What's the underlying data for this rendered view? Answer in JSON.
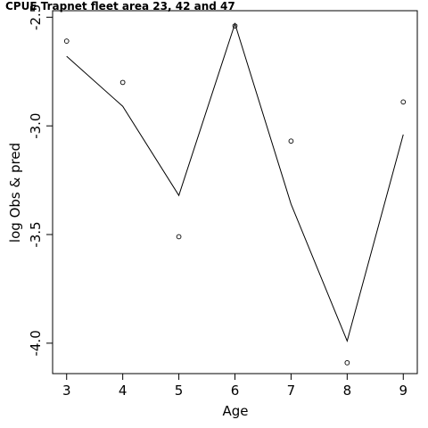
{
  "chart_data": {
    "type": "scatter",
    "title": "CPUE Trapnet fleet area 23, 42 and 47",
    "xlabel": "Age",
    "ylabel": "log Obs & pred",
    "xlim": [
      2.75,
      9.25
    ],
    "ylim": [
      -4.14,
      -2.47
    ],
    "x_ticks": [
      3,
      4,
      5,
      6,
      7,
      8,
      9
    ],
    "y_ticks": [
      -4.0,
      -3.5,
      -3.0,
      -2.5
    ],
    "y_tick_labels": [
      "-4.0",
      "-3.5",
      "-3.0",
      "-2.5"
    ],
    "series": [
      {
        "style": "points",
        "marker": "open-circle",
        "x": [
          3,
          4,
          5,
          6,
          7,
          8,
          9
        ],
        "values": [
          -2.61,
          -2.8,
          -3.51,
          -2.54,
          -3.07,
          -4.09,
          -2.89
        ]
      },
      {
        "style": "line",
        "x": [
          3,
          4,
          5,
          6,
          7,
          8,
          9
        ],
        "values": [
          -2.68,
          -2.91,
          -3.32,
          -2.53,
          -3.36,
          -3.99,
          -3.04
        ]
      }
    ],
    "grid": false,
    "legend": "none"
  }
}
